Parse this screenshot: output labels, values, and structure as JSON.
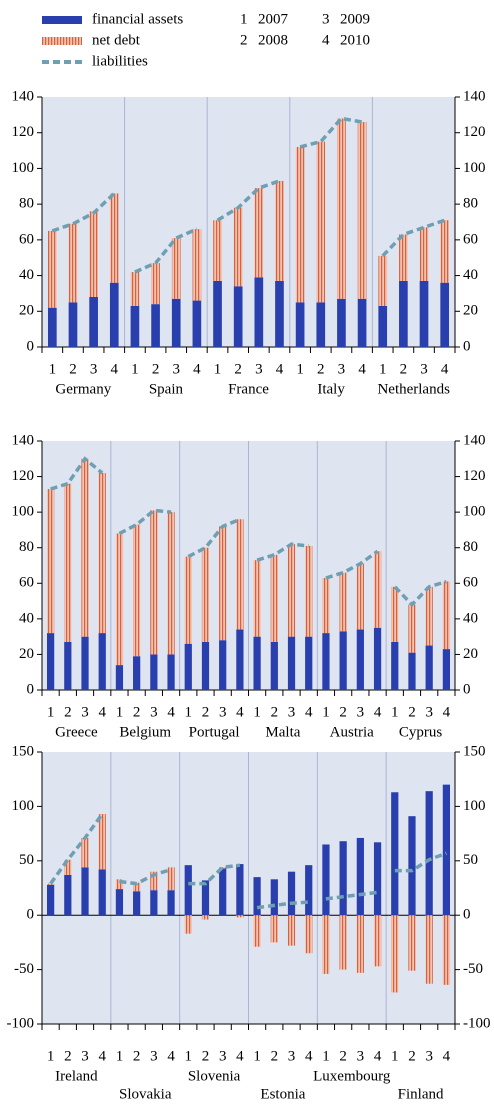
{
  "legend": {
    "series": [
      {
        "name": "financial assets",
        "color": "#2a3fae",
        "mark": "bar"
      },
      {
        "name": "net debt",
        "color": "#ec9c82",
        "mark": "bar"
      },
      {
        "name": "liabilities",
        "color": "#6f9fb3",
        "mark": "line",
        "style": "dashed"
      }
    ],
    "key": [
      {
        "number": 1,
        "year": 2007
      },
      {
        "number": 2,
        "year": 2008
      },
      {
        "number": 3,
        "year": 2009
      },
      {
        "number": 4,
        "year": 2010
      }
    ]
  },
  "chart_data": [
    {
      "type": "bar",
      "ylim": [
        0,
        140
      ],
      "yticks": [
        0,
        20,
        40,
        60,
        80,
        100,
        120,
        140
      ],
      "y2lim": [
        0,
        140
      ],
      "y2ticks": [
        0,
        20,
        40,
        60,
        80,
        100,
        120,
        140
      ],
      "grid": true,
      "groups": [
        "Germany",
        "Spain",
        "France",
        "Italy",
        "Netherlands"
      ],
      "label_rows": 1,
      "categories": [
        "1",
        "2",
        "3",
        "4",
        "1",
        "2",
        "3",
        "4",
        "1",
        "2",
        "3",
        "4",
        "1",
        "2",
        "3",
        "4",
        "1",
        "2",
        "3",
        "4"
      ],
      "series": [
        {
          "values": [
            22,
            25,
            28,
            36,
            23,
            24,
            27,
            26,
            37,
            34,
            39,
            37,
            25,
            25,
            27,
            27,
            23,
            37,
            37,
            36
          ]
        },
        {
          "values": [
            43,
            44,
            48,
            50,
            19,
            23,
            34,
            40,
            34,
            44,
            50,
            56,
            87,
            90,
            101,
            99,
            28,
            26,
            30,
            35
          ]
        },
        {
          "values": [
            65,
            69,
            75,
            86,
            42,
            47,
            61,
            66,
            71,
            78,
            89,
            93,
            112,
            115,
            128,
            126,
            51,
            63,
            67,
            71
          ]
        }
      ]
    },
    {
      "type": "bar",
      "ylim": [
        0,
        140
      ],
      "yticks": [
        0,
        20,
        40,
        60,
        80,
        100,
        120,
        140
      ],
      "y2lim": [
        0,
        140
      ],
      "y2ticks": [
        0,
        20,
        40,
        60,
        80,
        100,
        120,
        140
      ],
      "grid": true,
      "groups": [
        "Greece",
        "Belgium",
        "Portugal",
        "Malta",
        "Austria",
        "Cyprus"
      ],
      "label_rows": 1,
      "categories": [
        "1",
        "2",
        "3",
        "4",
        "1",
        "2",
        "3",
        "4",
        "1",
        "2",
        "3",
        "4",
        "1",
        "2",
        "3",
        "4",
        "1",
        "2",
        "3",
        "4",
        "1",
        "2",
        "3",
        "4"
      ],
      "series": [
        {
          "values": [
            32,
            27,
            30,
            32,
            14,
            19,
            20,
            20,
            26,
            27,
            28,
            34,
            30,
            27,
            30,
            30,
            32,
            33,
            34,
            35,
            27,
            21,
            25,
            23
          ]
        },
        {
          "values": [
            81,
            89,
            100,
            90,
            74,
            74,
            81,
            80,
            49,
            53,
            64,
            62,
            43,
            49,
            52,
            51,
            31,
            33,
            37,
            43,
            31,
            27,
            33,
            38
          ]
        },
        {
          "values": [
            113,
            116,
            130,
            122,
            88,
            93,
            101,
            100,
            75,
            80,
            92,
            96,
            73,
            76,
            82,
            81,
            63,
            66,
            71,
            78,
            58,
            48,
            58,
            61
          ]
        }
      ]
    },
    {
      "type": "bar",
      "ylim": [
        -100,
        150
      ],
      "yticks": [
        -100,
        -50,
        0,
        50,
        100,
        150
      ],
      "y2lim": [
        -100,
        150
      ],
      "y2ticks": [
        -100,
        -50,
        0,
        50,
        100,
        150
      ],
      "grid": true,
      "groups": [
        "Ireland",
        "Slovakia",
        "Slovenia",
        "Estonia",
        "Luxembourg",
        "Finland"
      ],
      "label_rows": 2,
      "categories": [
        "1",
        "2",
        "3",
        "4",
        "1",
        "2",
        "3",
        "4",
        "1",
        "2",
        "3",
        "4",
        "1",
        "2",
        "3",
        "4",
        "1",
        "2",
        "3",
        "4",
        "1",
        "2",
        "3",
        "4"
      ],
      "series": [
        {
          "values": [
            28,
            37,
            44,
            42,
            24,
            22,
            23,
            23,
            46,
            32,
            43,
            47,
            35,
            33,
            40,
            46,
            65,
            68,
            71,
            67,
            113,
            91,
            114,
            120
          ]
        },
        {
          "values": [
            1,
            14,
            27,
            51,
            9,
            8,
            17,
            21,
            -17,
            -4,
            1,
            -2,
            -29,
            -25,
            -28,
            -35,
            -54,
            -50,
            -53,
            -47,
            -71,
            -51,
            -63,
            -64
          ]
        },
        {
          "values": [
            29,
            51,
            71,
            93,
            31,
            29,
            37,
            42,
            29,
            29,
            44,
            46,
            7,
            9,
            11,
            12,
            15,
            17,
            19,
            21,
            41,
            41,
            51,
            57
          ]
        }
      ]
    }
  ]
}
